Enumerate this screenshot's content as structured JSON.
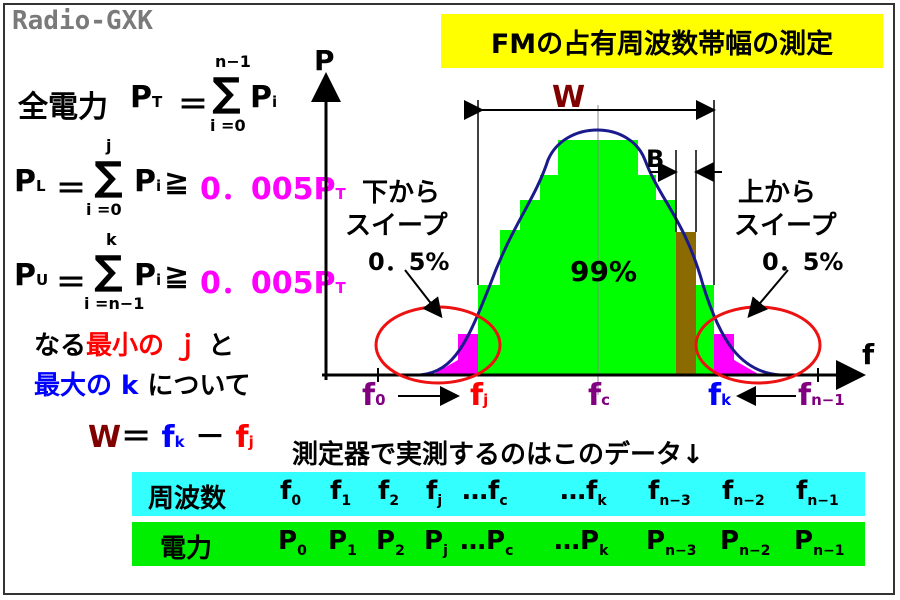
{
  "brand": "Radio-GXK",
  "title": "FMの占有周波数帯幅の測定",
  "formulas": {
    "total_label": "全電力",
    "pt": "P",
    "pt_sub": "T",
    "eq": "＝",
    "sum_upper_1": "n−1",
    "sum_lower_1": "i =0",
    "sum_upper_2": "j",
    "sum_lower_2": "i =0",
    "sum_upper_3": "k",
    "sum_lower_3": "i =n−1",
    "pi": "P",
    "pi_sub": "i",
    "pl": "P",
    "pl_sub": "L",
    "pu": "P",
    "pu_sub": "U",
    "ge": "≧",
    "ratio": "0．005P",
    "ratio_sub": "T"
  },
  "condition": {
    "naru": "なる",
    "min_j": "最小の ｊ",
    "to": "と",
    "max_k": "最大の k",
    "nitsuite": "について"
  },
  "w_formula": {
    "w": "W",
    "eq": "＝",
    "fk": "f",
    "fk_sub": "k",
    "minus": "－",
    "fj": "f",
    "fj_sub": "j"
  },
  "diagram": {
    "axis_p": "P",
    "axis_f": "f",
    "w_label": "W",
    "b_label": "B",
    "center_pct": "99%",
    "left_note_line1": "下から",
    "left_note_line2": "スイープ",
    "left_note_pct": "0．5%",
    "right_note_line1": "上から",
    "right_note_line2": "スイープ",
    "right_note_pct": "0．5%",
    "f0": "f",
    "f0_sub": "0",
    "fj": "f",
    "fj_sub": "j",
    "fc": "f",
    "fc_sub": "c",
    "fk": "f",
    "fk_sub": "k",
    "fn1": "f",
    "fn1_sub": "n−1"
  },
  "table_caption": "測定器で実測するのはこのデータ↓",
  "table": {
    "freq_label": "周波数",
    "power_label": "電力",
    "freq_cells": [
      {
        "base": "f",
        "sub": "0"
      },
      {
        "base": "f",
        "sub": "1"
      },
      {
        "base": "f",
        "sub": "2"
      },
      {
        "base": "f",
        "sub": "j"
      },
      {
        "base": "…f",
        "sub": "c"
      },
      {
        "base": "…f",
        "sub": "k"
      },
      {
        "base": "f",
        "sub": "n−3"
      },
      {
        "base": "f",
        "sub": "n−2"
      },
      {
        "base": "f",
        "sub": "n−1"
      }
    ],
    "power_cells": [
      {
        "base": "P",
        "sub": "0"
      },
      {
        "base": "P",
        "sub": "1"
      },
      {
        "base": "P",
        "sub": "2"
      },
      {
        "base": "P",
        "sub": "j"
      },
      {
        "base": "…P",
        "sub": "c"
      },
      {
        "base": "…P",
        "sub": "k"
      },
      {
        "base": "P",
        "sub": "n−3"
      },
      {
        "base": "P",
        "sub": "n−2"
      },
      {
        "base": "P",
        "sub": "n−1"
      }
    ]
  },
  "colors": {
    "title_bg": "#ffff00",
    "freq_row_bg": "#33ffff",
    "power_row_bg": "#00ee00",
    "bar_green": "#00ff00",
    "bar_magenta": "#ff00ff",
    "bar_olive": "#8b6b00",
    "curve": "#1a1a8c",
    "ellipse": "#ee1111"
  }
}
